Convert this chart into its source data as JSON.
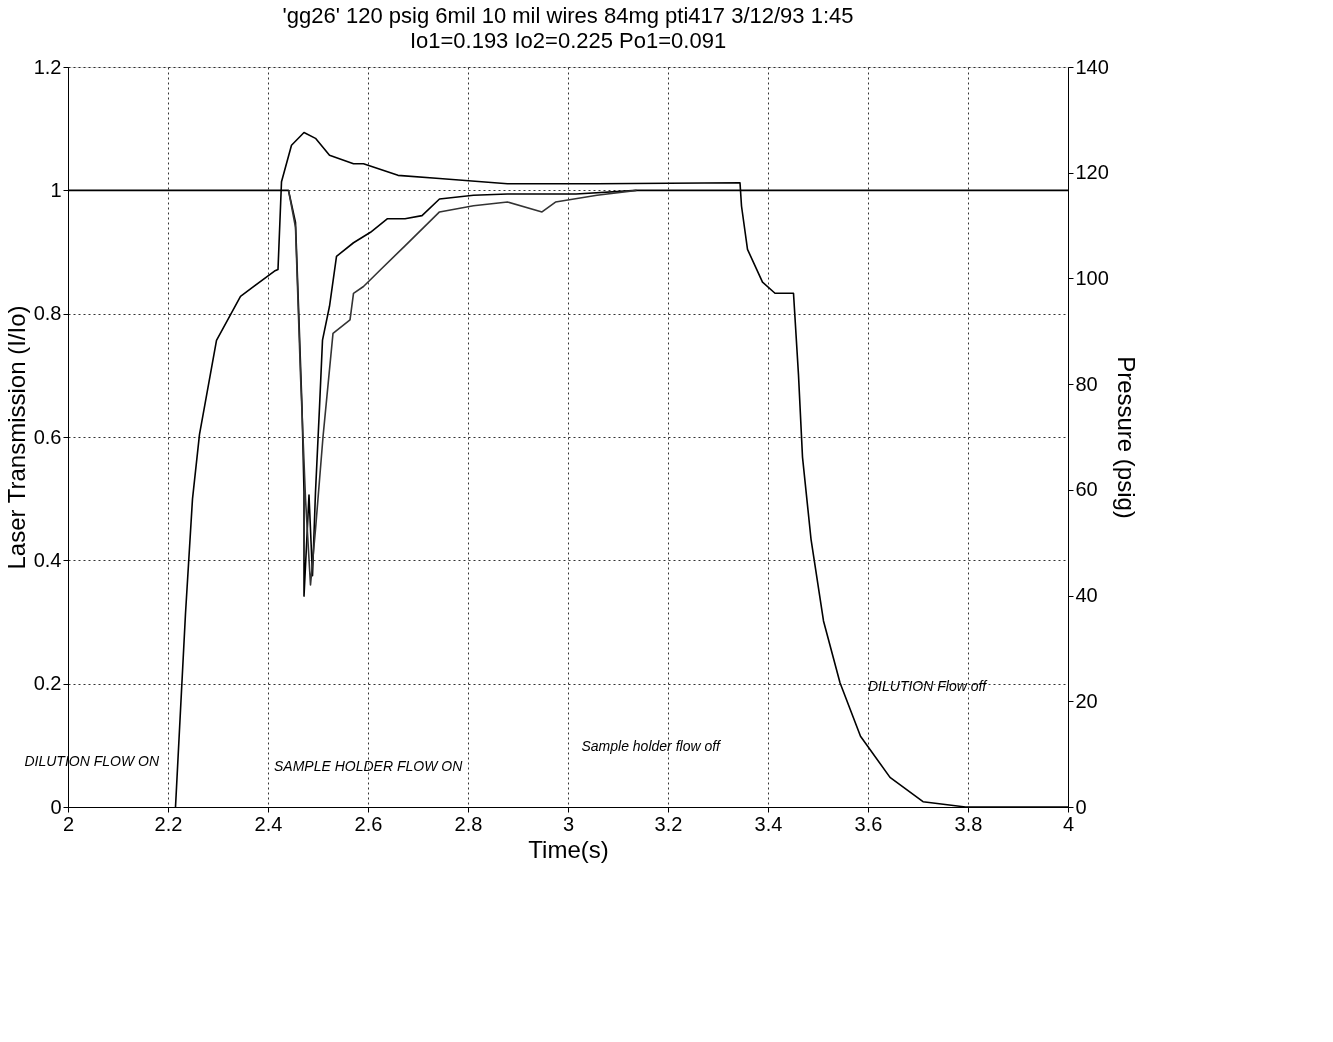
{
  "chart_data": {
    "type": "line",
    "title": "'gg26' 120 psig 6mil 10 mil wires 84mg pti417 3/12/93 1:45",
    "subtitle": "Io1=0.193   Io2=0.225  Po1=0.091",
    "xlabel": "Time(s)",
    "ylabel": "Laser Transmission (I/Io)",
    "y2label": "Pressure (psig)",
    "xlim": [
      2,
      4
    ],
    "xticks": [
      2,
      2.2,
      2.4,
      2.6,
      2.8,
      3,
      3.2,
      3.4,
      3.6,
      3.8,
      4
    ],
    "ylim": [
      0,
      1.2
    ],
    "yticks": [
      0,
      0.2,
      0.4,
      0.6,
      0.8,
      1,
      1.2
    ],
    "y2lim": [
      0,
      140
    ],
    "y2ticks": [
      0,
      20,
      40,
      60,
      80,
      100,
      120,
      140
    ],
    "grid": true,
    "marker": "none",
    "line_style": "solid",
    "series": [
      {
        "color": "#000000",
        "x": [
          2,
          2.1,
          2.2,
          2.3,
          2.4,
          2.441,
          2.455,
          2.461,
          2.468,
          2.472,
          2.472,
          2.482,
          2.489,
          2.495,
          2.503,
          2.509,
          2.523,
          2.537,
          2.571,
          2.605,
          2.639,
          2.674,
          2.708,
          2.743,
          2.811,
          2.879,
          3.016,
          3.137,
          3.3,
          3.5,
          3.7,
          3.9,
          4
        ],
        "values": [
          1,
          1,
          1,
          1,
          1,
          1,
          0.948,
          0.812,
          0.648,
          0.511,
          0.342,
          0.506,
          0.375,
          0.511,
          0.648,
          0.757,
          0.812,
          0.893,
          0.915,
          0.932,
          0.954,
          0.954,
          0.959,
          0.986,
          0.992,
          0.994,
          0.994,
          1,
          1,
          1,
          1,
          1,
          1
        ]
      },
      {
        "color": "#333333",
        "x": [
          2.441,
          2.455,
          2.465,
          2.475,
          2.485,
          2.495,
          2.51,
          2.53,
          2.564,
          2.571,
          2.591,
          2.626,
          2.674,
          2.743,
          2.811,
          2.879,
          2.948,
          2.975,
          3.058,
          3.137
        ],
        "values": [
          1,
          0.94,
          0.7,
          0.5,
          0.36,
          0.45,
          0.6,
          0.768,
          0.79,
          0.833,
          0.844,
          0.872,
          0.91,
          0.965,
          0.975,
          0.981,
          0.965,
          0.981,
          0.992,
          1
        ]
      },
      {
        "color": "#000000",
        "axis": "y2",
        "x": [
          2.215,
          2.235,
          2.249,
          2.263,
          2.297,
          2.345,
          2.413,
          2.42,
          2.427,
          2.447,
          2.472,
          2.495,
          2.523,
          2.571,
          2.591,
          2.66,
          2.743,
          2.879,
          3.058,
          3.344,
          3.347,
          3.359,
          3.389,
          3.414,
          3.451,
          3.461,
          3.469,
          3.486,
          3.511,
          3.544,
          3.585,
          3.644,
          3.71,
          3.795,
          4
        ],
        "values": [
          0,
          36.6,
          58.3,
          70.5,
          88.3,
          96.6,
          101.4,
          101.7,
          118.3,
          125.2,
          127.6,
          126.5,
          123.3,
          121.7,
          121.7,
          119.5,
          118.9,
          117.9,
          117.9,
          118.1,
          113.7,
          105.5,
          99.3,
          97.2,
          97.2,
          81.7,
          66.2,
          50.7,
          35.2,
          23.5,
          13.4,
          5.6,
          1,
          0,
          0
        ]
      }
    ],
    "annotations": [
      "DILUTION FLOW ON",
      "SAMPLE HOLDER FLOW ON",
      "Sample holder flow off",
      "DILUTION Flow off"
    ]
  }
}
